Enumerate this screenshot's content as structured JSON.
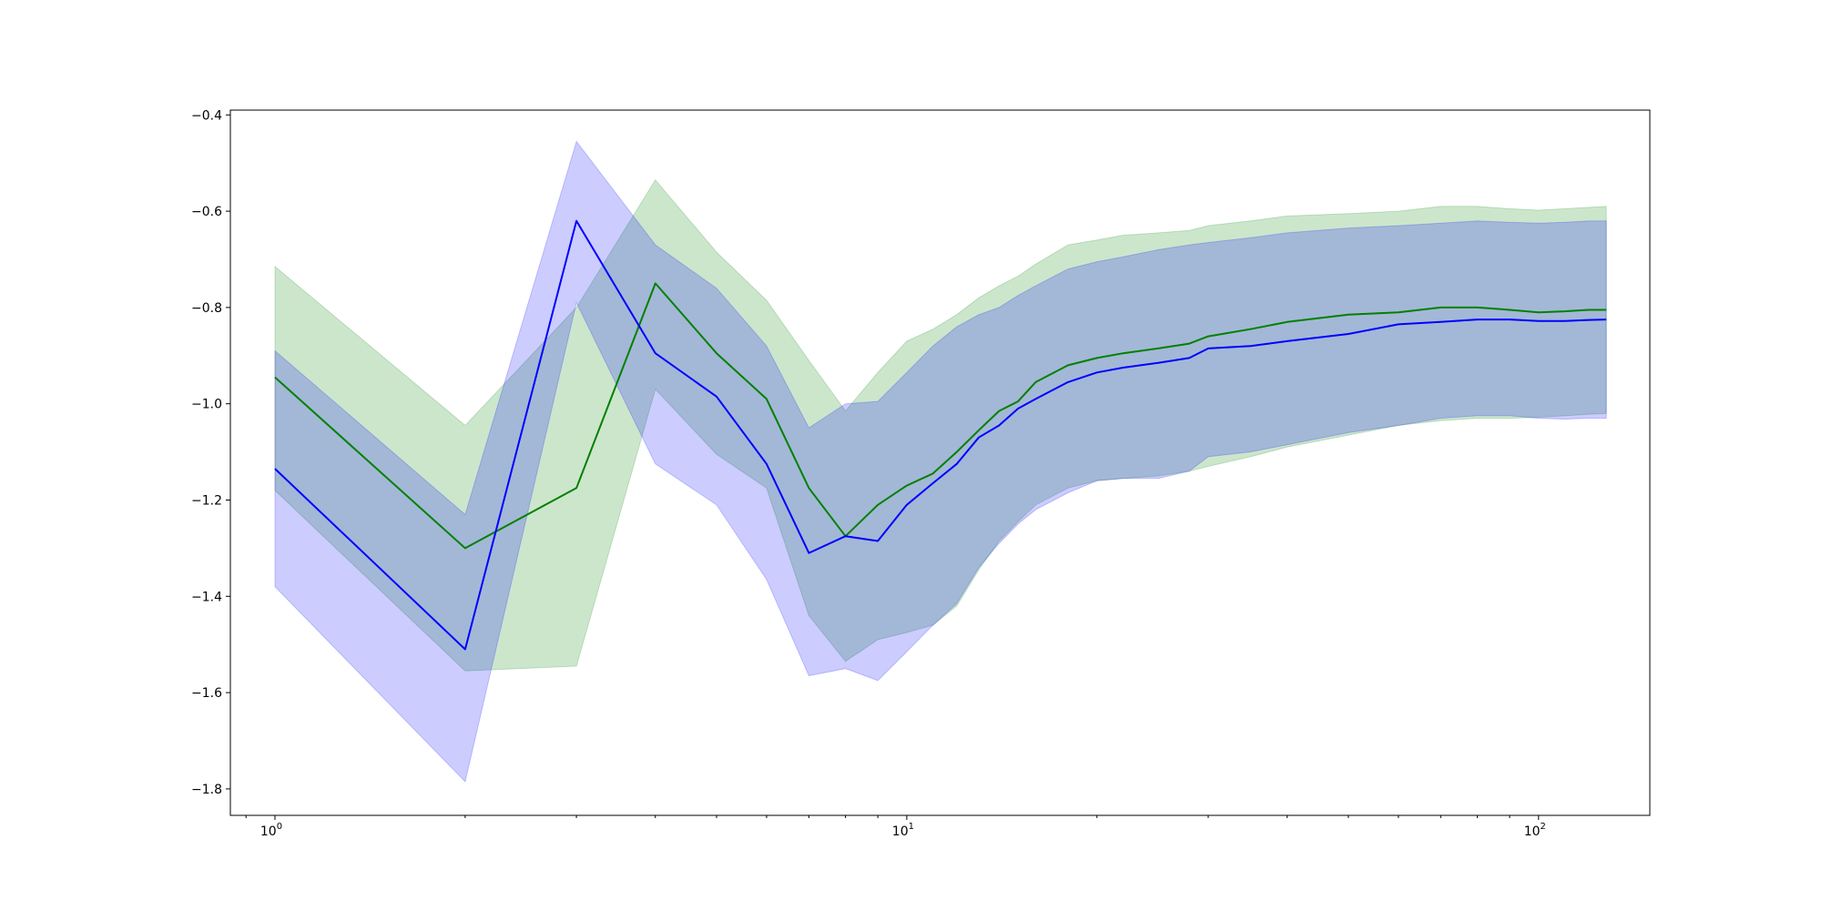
{
  "chart_data": {
    "type": "line",
    "title": "",
    "xlabel": "",
    "ylabel": "",
    "xscale": "log",
    "xlim": [
      0.85,
      150
    ],
    "ylim": [
      -1.855,
      -0.39
    ],
    "grid": false,
    "legend": "none",
    "x_ticks": [
      {
        "base": "10",
        "exp": "0",
        "value": 1
      },
      {
        "base": "10",
        "exp": "1",
        "value": 10
      },
      {
        "base": "10",
        "exp": "2",
        "value": 100
      }
    ],
    "y_ticks": [
      {
        "label": "−0.4",
        "value": -0.4
      },
      {
        "label": "−0.6",
        "value": -0.6
      },
      {
        "label": "−0.8",
        "value": -0.8
      },
      {
        "label": "−1.0",
        "value": -1.0
      },
      {
        "label": "−1.2",
        "value": -1.2
      },
      {
        "label": "−1.4",
        "value": -1.4
      },
      {
        "label": "−1.6",
        "value": -1.6
      },
      {
        "label": "−1.8",
        "value": -1.8
      }
    ],
    "series": [
      {
        "color": "#008000",
        "band_color": "#008000",
        "band_opacity": 0.2,
        "x": [
          1,
          2,
          3,
          4,
          5,
          6,
          7,
          8,
          9,
          10,
          11,
          12,
          13,
          14,
          15,
          16,
          18,
          20,
          22,
          25,
          28,
          30,
          35,
          40,
          50,
          60,
          70,
          80,
          90,
          100,
          110,
          120,
          128
        ],
        "mean": [
          -0.945,
          -1.3,
          -1.175,
          -0.75,
          -0.895,
          -0.99,
          -1.175,
          -1.275,
          -1.21,
          -1.17,
          -1.145,
          -1.1,
          -1.055,
          -1.015,
          -0.995,
          -0.955,
          -0.92,
          -0.905,
          -0.895,
          -0.885,
          -0.875,
          -0.86,
          -0.845,
          -0.83,
          -0.815,
          -0.81,
          -0.8,
          -0.8,
          -0.805,
          -0.81,
          -0.808,
          -0.805,
          -0.805
        ],
        "upper": [
          -0.715,
          -1.045,
          -0.8,
          -0.535,
          -0.685,
          -0.785,
          -0.91,
          -1.015,
          -0.935,
          -0.87,
          -0.845,
          -0.815,
          -0.78,
          -0.755,
          -0.735,
          -0.71,
          -0.67,
          -0.66,
          -0.65,
          -0.645,
          -0.64,
          -0.63,
          -0.62,
          -0.61,
          -0.605,
          -0.6,
          -0.59,
          -0.59,
          -0.595,
          -0.598,
          -0.595,
          -0.592,
          -0.59
        ],
        "lower": [
          -1.18,
          -1.555,
          -1.545,
          -0.97,
          -1.105,
          -1.175,
          -1.44,
          -1.535,
          -1.49,
          -1.475,
          -1.46,
          -1.42,
          -1.345,
          -1.285,
          -1.245,
          -1.21,
          -1.175,
          -1.16,
          -1.155,
          -1.15,
          -1.14,
          -1.13,
          -1.11,
          -1.09,
          -1.065,
          -1.045,
          -1.035,
          -1.03,
          -1.03,
          -1.028,
          -1.025,
          -1.022,
          -1.02
        ]
      },
      {
        "color": "#0000ff",
        "band_color": "#0000ff",
        "band_opacity": 0.2,
        "x": [
          1,
          2,
          3,
          4,
          5,
          6,
          7,
          8,
          9,
          10,
          11,
          12,
          13,
          14,
          15,
          16,
          18,
          20,
          22,
          25,
          28,
          30,
          35,
          40,
          50,
          60,
          70,
          80,
          90,
          100,
          110,
          120,
          128
        ],
        "mean": [
          -1.135,
          -1.51,
          -0.62,
          -0.895,
          -0.985,
          -1.125,
          -1.31,
          -1.275,
          -1.285,
          -1.21,
          -1.165,
          -1.125,
          -1.07,
          -1.045,
          -1.01,
          -0.99,
          -0.955,
          -0.935,
          -0.925,
          -0.915,
          -0.905,
          -0.885,
          -0.88,
          -0.87,
          -0.855,
          -0.835,
          -0.83,
          -0.825,
          -0.825,
          -0.828,
          -0.828,
          -0.826,
          -0.825
        ],
        "upper": [
          -0.89,
          -1.23,
          -0.455,
          -0.67,
          -0.76,
          -0.88,
          -1.05,
          -1.0,
          -0.995,
          -0.935,
          -0.88,
          -0.84,
          -0.815,
          -0.8,
          -0.775,
          -0.755,
          -0.72,
          -0.705,
          -0.695,
          -0.68,
          -0.67,
          -0.665,
          -0.655,
          -0.645,
          -0.635,
          -0.63,
          -0.625,
          -0.62,
          -0.623,
          -0.625,
          -0.623,
          -0.62,
          -0.62
        ],
        "lower": [
          -1.38,
          -1.785,
          -0.79,
          -1.125,
          -1.21,
          -1.365,
          -1.565,
          -1.55,
          -1.575,
          -1.515,
          -1.46,
          -1.415,
          -1.34,
          -1.29,
          -1.25,
          -1.22,
          -1.185,
          -1.16,
          -1.155,
          -1.155,
          -1.14,
          -1.11,
          -1.1,
          -1.085,
          -1.06,
          -1.045,
          -1.03,
          -1.025,
          -1.025,
          -1.03,
          -1.032,
          -1.03,
          -1.03
        ]
      }
    ]
  }
}
